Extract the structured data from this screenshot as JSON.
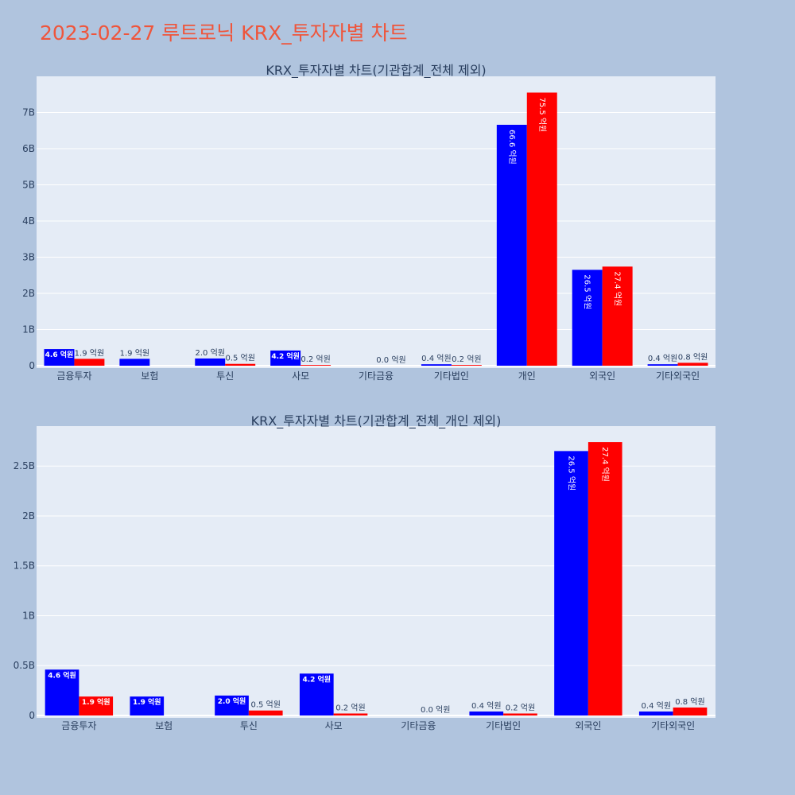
{
  "title": "2023-02-27 루트로닉 KRX_투자자별 차트",
  "colors": {
    "buy": "#0000ff",
    "sell": "#ff0000",
    "plot_bg": "#e5ecf6",
    "page_bg": "#b0c4de",
    "title": "#ef553b"
  },
  "chart_data": [
    {
      "type": "bar",
      "title": "KRX_투자자별 차트(기관합계_전체 제외)",
      "categories": [
        "금융투자",
        "보험",
        "투신",
        "사모",
        "기타금융",
        "기타법인",
        "개인",
        "외국인",
        "기타외국인"
      ],
      "series": [
        {
          "values": [
            460000000,
            190000000,
            200000000,
            420000000,
            0,
            40000000,
            6660000000,
            2650000000,
            40000000
          ],
          "labels": [
            "4.6 억원",
            "1.9 억원",
            "2.0 억원",
            "4.2 억원",
            "",
            "0.4 억원",
            "66.6 억원",
            "26.5 억원",
            "0.4 억원"
          ]
        },
        {
          "values": [
            190000000,
            0,
            50000000,
            20000000,
            0,
            20000000,
            7550000000,
            2740000000,
            80000000
          ],
          "labels": [
            "1.9 억원",
            "",
            "0.5 억원",
            "0.2 억원",
            "0.0 억원",
            "0.2 억원",
            "75.5 억원",
            "27.4 억원",
            "0.8 억원"
          ]
        }
      ],
      "yticks": [
        "0",
        "1B",
        "2B",
        "3B",
        "4B",
        "5B",
        "6B",
        "7B"
      ],
      "ylim": [
        0,
        8000000000
      ],
      "grid": true
    },
    {
      "type": "bar",
      "title": "KRX_투자자별 차트(기관합계_전체_개인 제외)",
      "categories": [
        "금융투자",
        "보험",
        "투신",
        "사모",
        "기타금융",
        "기타법인",
        "외국인",
        "기타외국인"
      ],
      "series": [
        {
          "values": [
            460000000,
            190000000,
            200000000,
            420000000,
            0,
            40000000,
            2650000000,
            40000000
          ],
          "labels": [
            "4.6 억원",
            "1.9 억원",
            "2.0 억원",
            "4.2 억원",
            "",
            "0.4 억원",
            "26.5 억원",
            "0.4 억원"
          ]
        },
        {
          "values": [
            190000000,
            0,
            50000000,
            20000000,
            0,
            20000000,
            2740000000,
            80000000
          ],
          "labels": [
            "1.9 억원",
            "",
            "0.5 억원",
            "0.2 억원",
            "0.0 억원",
            "0.2 억원",
            "27.4 억원",
            "0.8 억원"
          ]
        }
      ],
      "yticks": [
        "0",
        "0.5B",
        "1B",
        "1.5B",
        "2B",
        "2.5B"
      ],
      "ylim": [
        0,
        2900000000
      ],
      "grid": true
    }
  ]
}
